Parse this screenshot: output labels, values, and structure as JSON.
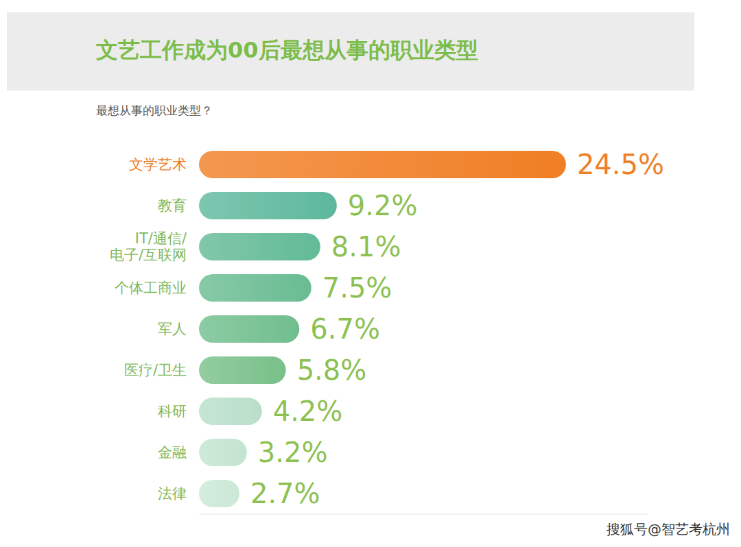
{
  "chart_data": {
    "type": "bar",
    "orientation": "horizontal",
    "title": "文艺工作成为00后最想从事的职业类型",
    "subtitle": "最想从事的职业类型？",
    "categories": [
      "文学艺术",
      "教育",
      "IT/通信/\n电子/互联网",
      "个体工商业",
      "军人",
      "医疗/卫生",
      "科研",
      "金融",
      "法律"
    ],
    "values": [
      24.5,
      9.2,
      8.1,
      7.5,
      6.7,
      5.8,
      4.2,
      3.2,
      2.7
    ],
    "value_labels": [
      "24.5%",
      "9.2%",
      "8.1%",
      "7.5%",
      "6.7%",
      "5.8%",
      "4.2%",
      "3.2%",
      "2.7%"
    ],
    "data_labels": true,
    "colors": [
      "#f07e24",
      "#5db89b",
      "#62ba96",
      "#69bc92",
      "#70be8d",
      "#78c089",
      "#b8dfca",
      "#c2e4d0",
      "#cbe8d6"
    ],
    "xlim": [
      0,
      30
    ],
    "tick_labels": "y",
    "grid": false,
    "annotations": [
      "搜狐号@智艺考杭州"
    ]
  }
}
